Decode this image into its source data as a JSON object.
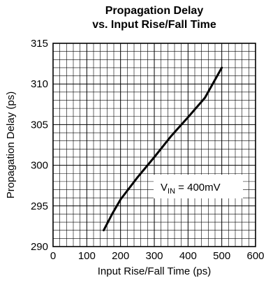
{
  "chart_data": {
    "type": "line",
    "title": "Propagation Delay",
    "subtitle": "vs. Input Rise/Fall Time",
    "xlabel": "Input Rise/Fall Time (ps)",
    "ylabel": "Propagation Delay (ps)",
    "xlim": [
      0,
      600
    ],
    "ylim": [
      290,
      315
    ],
    "xticks": [
      0,
      100,
      200,
      300,
      400,
      500,
      600
    ],
    "yticks": [
      290,
      295,
      300,
      305,
      310,
      315
    ],
    "grid": true,
    "annotation": {
      "text_main": "V",
      "text_sub": "IN",
      "text_rest": " = 400mV"
    },
    "series": [
      {
        "x": [
          150,
          175,
          200,
          250,
          300,
          350,
          400,
          450,
          500
        ],
        "y": [
          292.0,
          294.0,
          295.8,
          298.5,
          301.0,
          303.6,
          305.9,
          308.3,
          312.0
        ]
      }
    ],
    "line_color": "#000000"
  }
}
